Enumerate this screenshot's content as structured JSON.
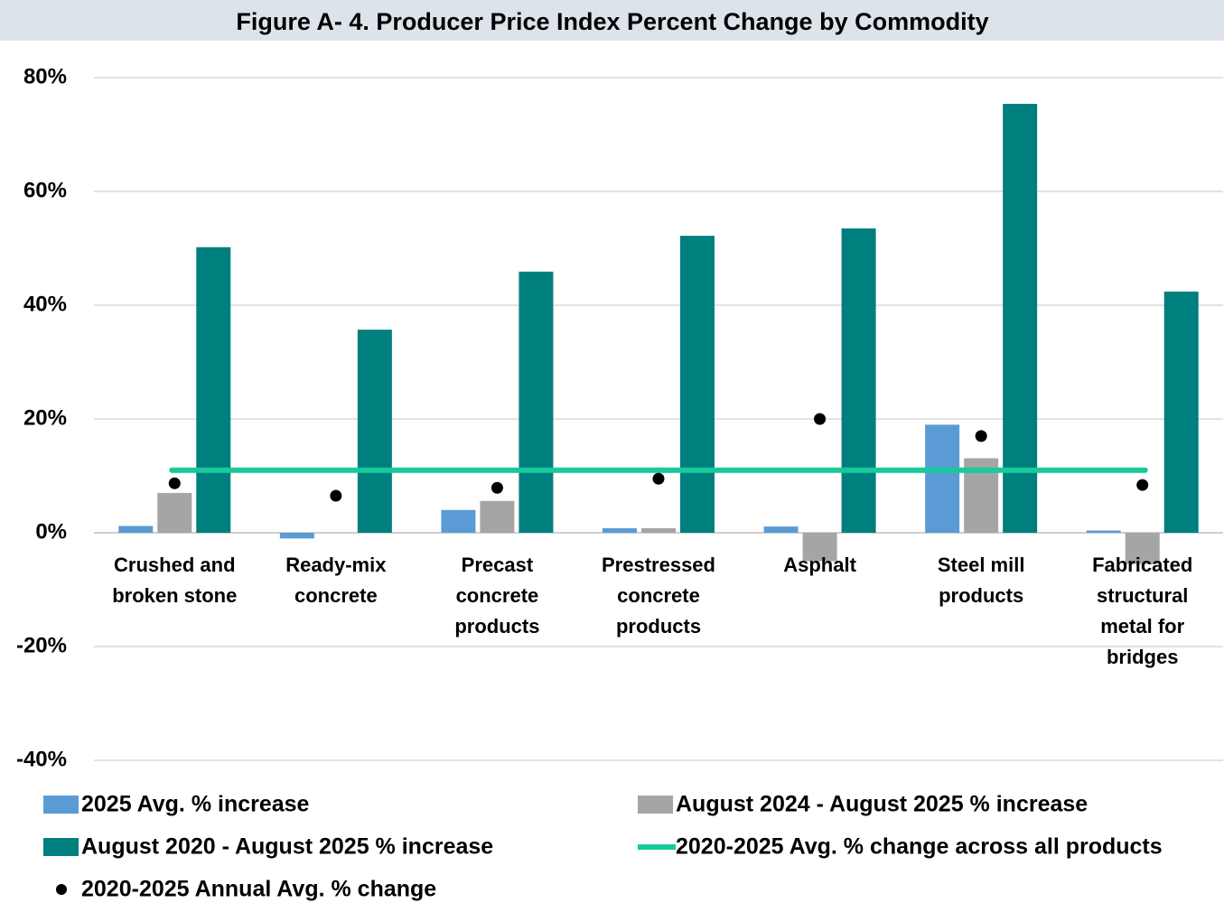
{
  "chart_data": {
    "type": "bar",
    "title": "Figure A- 4. Producer Price Index Percent Change by Commodity",
    "categories": [
      "Crushed and broken stone",
      "Ready-mix concrete",
      "Precast concrete products",
      "Prestressed concrete products",
      "Asphalt",
      "Steel mill products",
      "Fabricated structural metal for bridges"
    ],
    "series": [
      {
        "name": "2025 Avg. % increase",
        "type": "bar",
        "color": "#5b9bd5",
        "values": [
          1.2,
          -1,
          4,
          0.8,
          1.1,
          19,
          0.4
        ]
      },
      {
        "name": "August 2024 - August 2025 % increase",
        "type": "bar",
        "color": "#a5a5a5",
        "values": [
          7,
          0,
          5.6,
          0.8,
          -5,
          13.1,
          -5.5
        ]
      },
      {
        "name": "August 2020 - August 2025 % increase",
        "type": "bar",
        "color": "#007f7f",
        "values": [
          50.2,
          35.7,
          45.9,
          52.2,
          53.5,
          75.4,
          42.4
        ]
      },
      {
        "name": "2020-2025 Annual Avg. % change",
        "type": "scatter",
        "color": "#000000",
        "values": [
          8.7,
          6.5,
          7.9,
          9.5,
          20,
          17,
          8.4
        ]
      }
    ],
    "reference_line": {
      "name": "2020-2025 Avg. % change across all products",
      "color": "#19c99a",
      "value": 11
    },
    "ylim": [
      -40,
      80
    ],
    "yticks": [
      {
        "value": -40,
        "label": "-40%"
      },
      {
        "value": -20,
        "label": "-20%"
      },
      {
        "value": 0,
        "label": "0%"
      },
      {
        "value": 20,
        "label": "20%"
      },
      {
        "value": 40,
        "label": "40%"
      },
      {
        "value": 60,
        "label": "60%"
      },
      {
        "value": 80,
        "label": "80%"
      }
    ],
    "grid": true
  }
}
